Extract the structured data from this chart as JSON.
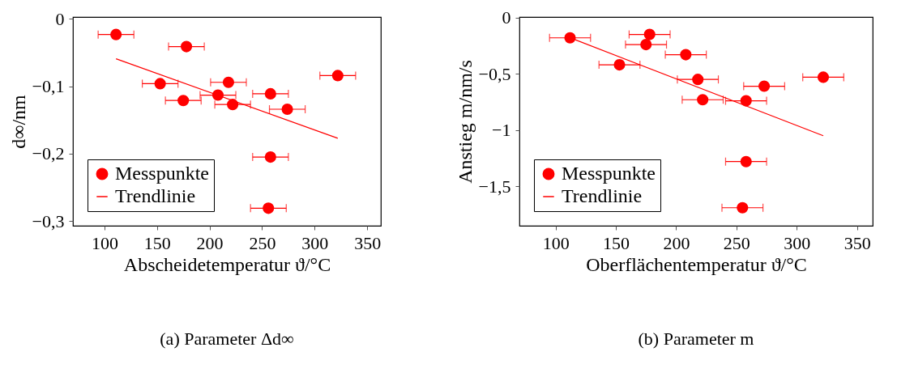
{
  "chart_data": [
    {
      "type": "scatter",
      "title": "(a) Parameter Δd∞",
      "xlabel": "Abscheidetemperatur ϑ/°C",
      "ylabel": "d∞/nm",
      "xlim": [
        70,
        363
      ],
      "ylim": [
        -0.307,
        0.003
      ],
      "xticks": [
        100,
        150,
        200,
        250,
        300,
        350
      ],
      "yticks": [
        {
          "value": 0,
          "label": "0"
        },
        {
          "value": -0.1,
          "label": "−0,1"
        },
        {
          "value": -0.2,
          "label": "−0,2"
        },
        {
          "value": -0.3,
          "label": "−0,3"
        }
      ],
      "legend": "bottom left",
      "grid": false,
      "series": [
        {
          "name": "Messpunkte",
          "marker": "circle",
          "color": "#ff0000",
          "x": [
            111,
            178,
            153,
            175,
            218,
            208,
            222,
            258,
            274,
            322,
            258,
            256
          ],
          "values": [
            -0.023,
            -0.041,
            -0.096,
            -0.121,
            -0.094,
            -0.113,
            -0.127,
            -0.111,
            -0.134,
            -0.084,
            -0.205,
            -0.281
          ],
          "xerrors": [
            17,
            17,
            17,
            17,
            17,
            17,
            17,
            17,
            17,
            17,
            17,
            17
          ]
        },
        {
          "name": "Trendlinie",
          "type": "line",
          "color": "#ff0000",
          "x": [
            111,
            322
          ],
          "values": [
            -0.059,
            -0.177
          ]
        }
      ]
    },
    {
      "type": "scatter",
      "title": "(b) Parameter m",
      "xlabel": "Oberflächentemperatur ϑ/°C",
      "ylabel": "Anstieg m/nm/s",
      "xlim": [
        70,
        363
      ],
      "ylim": [
        -1.85,
        0.005
      ],
      "xticks": [
        100,
        150,
        200,
        250,
        300,
        350
      ],
      "yticks": [
        {
          "value": 0,
          "label": "0"
        },
        {
          "value": -0.5,
          "label": "−0,5"
        },
        {
          "value": -1,
          "label": "−1"
        },
        {
          "value": -1.5,
          "label": "−1,5"
        }
      ],
      "legend": "bottom left",
      "grid": false,
      "series": [
        {
          "name": "Messpunkte",
          "marker": "circle",
          "color": "#ff0000",
          "x": [
            112,
            178,
            175,
            208,
            153,
            218,
            273,
            222,
            258,
            322,
            258,
            255
          ],
          "values": [
            -0.18,
            -0.15,
            -0.24,
            -0.33,
            -0.42,
            -0.55,
            -0.61,
            -0.73,
            -0.74,
            -0.53,
            -1.28,
            -1.69
          ],
          "xerrors": [
            17,
            17,
            17,
            17,
            17,
            17,
            17,
            17,
            17,
            17,
            17,
            17
          ]
        },
        {
          "name": "Trendlinie",
          "type": "line",
          "color": "#ff0000",
          "x": [
            112,
            322
          ],
          "values": [
            -0.18,
            -1.05
          ]
        }
      ]
    }
  ]
}
